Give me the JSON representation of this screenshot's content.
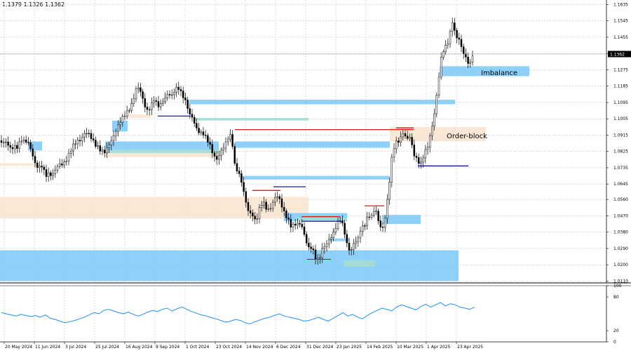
{
  "header": {
    "ohlc_text": "1.1379 1.1326 1.1362"
  },
  "colors": {
    "candle": "#000000",
    "zone_blue": "#87cefa",
    "zone_beige": "#fae6d2",
    "zone_teal": "#a6dccf",
    "level_red": "#e00000",
    "level_navy": "#00008b",
    "oscillator": "#1e90ff",
    "grid": "#c8c8c8"
  },
  "chart_data": {
    "type": "candlestick",
    "price_axis": {
      "ticks": [
        "1.1635",
        "1.1545",
        "1.1455",
        "1.1365",
        "1.1275",
        "1.1185",
        "1.1095",
        "1.1005",
        "1.0915",
        "1.0825",
        "1.0735",
        "1.0645",
        "1.0560",
        "1.0470",
        "1.0380",
        "1.0290",
        "1.0200",
        "1.0110"
      ],
      "ylim": [
        1.01,
        1.166
      ],
      "current_price": "1.1362"
    },
    "time_axis": {
      "labels": [
        "20 May 2024",
        "11 Jun 2024",
        "3 Jul 2024",
        "25 Jul 2024",
        "16 Aug 2024",
        "9 Sep 2024",
        "1 Oct 2024",
        "23 Oct 2024",
        "14 Nov 2024",
        "6 Dec 2024",
        "31 Dec 2024",
        "23 Jan 2025",
        "14 Feb 2025",
        "10 Mar 2025",
        "1 Apr 2025",
        "23 Apr 2025"
      ]
    },
    "price_path": [
      [
        0,
        1.0885
      ],
      [
        5,
        1.087
      ],
      [
        10,
        1.086
      ],
      [
        15,
        1.084
      ],
      [
        20,
        1.0865
      ],
      [
        25,
        1.0855
      ],
      [
        30,
        1.088
      ],
      [
        35,
        1.087
      ],
      [
        40,
        1.088
      ],
      [
        45,
        1.084
      ],
      [
        50,
        1.076
      ],
      [
        55,
        1.072
      ],
      [
        60,
        1.074
      ],
      [
        65,
        1.07
      ],
      [
        70,
        1.0715
      ],
      [
        75,
        1.069
      ],
      [
        80,
        1.072
      ],
      [
        85,
        1.075
      ],
      [
        90,
        1.0765
      ],
      [
        95,
        1.079
      ],
      [
        100,
        1.082
      ],
      [
        105,
        1.085
      ],
      [
        110,
        1.088
      ],
      [
        115,
        1.09
      ],
      [
        120,
        1.093
      ],
      [
        125,
        1.092
      ],
      [
        130,
        1.089
      ],
      [
        135,
        1.087
      ],
      [
        140,
        1.086
      ],
      [
        145,
        1.083
      ],
      [
        150,
        1.081
      ],
      [
        155,
        1.085
      ],
      [
        160,
        1.09
      ],
      [
        165,
        1.095
      ],
      [
        170,
        1.098
      ],
      [
        175,
        1.1
      ],
      [
        180,
        1.103
      ],
      [
        185,
        1.107
      ],
      [
        190,
        1.112
      ],
      [
        195,
        1.118
      ],
      [
        200,
        1.115
      ],
      [
        205,
        1.109
      ],
      [
        210,
        1.106
      ],
      [
        215,
        1.108
      ],
      [
        220,
        1.111
      ],
      [
        225,
        1.106
      ],
      [
        230,
        1.109
      ],
      [
        235,
        1.113
      ],
      [
        240,
        1.115
      ],
      [
        245,
        1.112
      ],
      [
        250,
        1.116
      ],
      [
        255,
        1.118
      ],
      [
        260,
        1.115
      ],
      [
        265,
        1.11
      ],
      [
        270,
        1.102
      ],
      [
        275,
        1.1
      ],
      [
        280,
        1.096
      ],
      [
        285,
        1.094
      ],
      [
        290,
        1.092
      ],
      [
        295,
        1.088
      ],
      [
        300,
        1.085
      ],
      [
        305,
        1.081
      ],
      [
        310,
        1.079
      ],
      [
        315,
        1.082
      ],
      [
        320,
        1.084
      ],
      [
        325,
        1.09
      ],
      [
        330,
        1.093
      ],
      [
        335,
        1.075
      ],
      [
        340,
        1.07
      ],
      [
        345,
        1.064
      ],
      [
        350,
        1.056
      ],
      [
        355,
        1.05
      ],
      [
        360,
        1.048
      ],
      [
        365,
        1.042
      ],
      [
        370,
        1.05
      ],
      [
        375,
        1.056
      ],
      [
        380,
        1.052
      ],
      [
        385,
        1.05
      ],
      [
        390,
        1.054
      ],
      [
        395,
        1.058
      ],
      [
        400,
        1.056
      ],
      [
        405,
        1.05
      ],
      [
        410,
        1.045
      ],
      [
        415,
        1.04
      ],
      [
        420,
        1.042
      ],
      [
        425,
        1.044
      ],
      [
        430,
        1.043
      ],
      [
        435,
        1.034
      ],
      [
        440,
        1.028
      ],
      [
        445,
        1.03
      ],
      [
        450,
        1.025
      ],
      [
        455,
        1.023
      ],
      [
        460,
        1.028
      ],
      [
        465,
        1.03
      ],
      [
        470,
        1.035
      ],
      [
        475,
        1.038
      ],
      [
        480,
        1.042
      ],
      [
        485,
        1.044
      ],
      [
        490,
        1.04
      ],
      [
        495,
        1.032
      ],
      [
        500,
        1.028
      ],
      [
        505,
        1.032
      ],
      [
        510,
        1.032
      ],
      [
        515,
        1.04
      ],
      [
        520,
        1.043
      ],
      [
        525,
        1.048
      ],
      [
        530,
        1.046
      ],
      [
        535,
        1.05
      ],
      [
        540,
        1.044
      ],
      [
        545,
        1.04
      ],
      [
        550,
        1.048
      ],
      [
        555,
        1.063
      ],
      [
        560,
        1.082
      ],
      [
        565,
        1.088
      ],
      [
        570,
        1.09
      ],
      [
        575,
        1.093
      ],
      [
        580,
        1.088
      ],
      [
        585,
        1.09
      ],
      [
        590,
        1.082
      ],
      [
        595,
        1.079
      ],
      [
        600,
        1.075
      ],
      [
        605,
        1.08
      ],
      [
        610,
        1.085
      ],
      [
        615,
        1.095
      ],
      [
        620,
        1.105
      ],
      [
        625,
        1.12
      ],
      [
        630,
        1.135
      ],
      [
        635,
        1.14
      ],
      [
        640,
        1.145
      ],
      [
        645,
        1.155
      ],
      [
        650,
        1.145
      ],
      [
        655,
        1.143
      ],
      [
        660,
        1.138
      ],
      [
        665,
        1.135
      ],
      [
        670,
        1.13
      ],
      [
        675,
        1.1362
      ]
    ],
    "zones": [
      {
        "kind": "blue",
        "x1": 0,
        "x2": 654,
        "p1": 1.028,
        "p2": 1.011
      },
      {
        "kind": "beige",
        "x1": 0,
        "x2": 440,
        "p1": 1.0575,
        "p2": 1.0455
      },
      {
        "kind": "beige",
        "x1": 0,
        "x2": 55,
        "p1": 1.076,
        "p2": 1.0745
      },
      {
        "kind": "blue",
        "x1": 40,
        "x2": 60,
        "p1": 1.088,
        "p2": 1.083
      },
      {
        "kind": "blue",
        "x1": 150,
        "x2": 312,
        "p1": 1.088,
        "p2": 1.083
      },
      {
        "kind": "teal",
        "x1": 150,
        "x2": 312,
        "p1": 1.0835,
        "p2": 1.0815
      },
      {
        "kind": "beige",
        "x1": 150,
        "x2": 312,
        "p1": 1.0815,
        "p2": 1.0795
      },
      {
        "kind": "blue",
        "x1": 160,
        "x2": 182,
        "p1": 1.0995,
        "p2": 1.0935
      },
      {
        "kind": "beige",
        "x1": 182,
        "x2": 215,
        "p1": 1.103,
        "p2": 1.101
      },
      {
        "kind": "blue",
        "x1": 270,
        "x2": 649,
        "p1": 1.111,
        "p2": 1.1085
      },
      {
        "kind": "teal",
        "x1": 278,
        "x2": 440,
        "p1": 1.101,
        "p2": 1.0995
      },
      {
        "kind": "blue",
        "x1": 335,
        "x2": 556,
        "p1": 1.088,
        "p2": 1.0845
      },
      {
        "kind": "blue",
        "x1": 345,
        "x2": 556,
        "p1": 1.069,
        "p2": 1.067
      },
      {
        "kind": "beige",
        "x1": 556,
        "x2": 693,
        "p1": 1.096,
        "p2": 1.088
      },
      {
        "kind": "blue",
        "x1": 405,
        "x2": 495,
        "p1": 1.0485,
        "p2": 1.044
      },
      {
        "kind": "teal",
        "x1": 420,
        "x2": 495,
        "p1": 1.046,
        "p2": 1.044
      },
      {
        "kind": "blue",
        "x1": 545,
        "x2": 600,
        "p1": 1.0475,
        "p2": 1.0425
      },
      {
        "kind": "blue",
        "x1": 470,
        "x2": 498,
        "p1": 1.0345,
        "p2": 1.033
      },
      {
        "kind": "blue",
        "x1": 627,
        "x2": 755,
        "p1": 1.1295,
        "p2": 1.124
      },
      {
        "kind": "teal",
        "x1": 490,
        "x2": 535,
        "p1": 1.0225,
        "p2": 1.019
      }
    ],
    "levels": [
      {
        "kind": "red",
        "x1": 335,
        "x2": 590,
        "p": 1.0945
      },
      {
        "kind": "red",
        "x1": 360,
        "x2": 400,
        "p": 1.061
      },
      {
        "kind": "red",
        "x1": 430,
        "x2": 485,
        "p": 1.0465
      },
      {
        "kind": "red",
        "x1": 520,
        "x2": 548,
        "p": 1.0525
      },
      {
        "kind": "red",
        "x1": 565,
        "x2": 590,
        "p": 1.0955
      },
      {
        "kind": "red",
        "x1": 438,
        "x2": 472,
        "p": 1.023
      },
      {
        "kind": "navy",
        "x1": 225,
        "x2": 272,
        "p": 1.102
      },
      {
        "kind": "navy",
        "x1": 390,
        "x2": 436,
        "p": 1.063
      },
      {
        "kind": "navy",
        "x1": 596,
        "x2": 668,
        "p": 1.0745
      },
      {
        "kind": "navy",
        "x1": 430,
        "x2": 490,
        "p": 1.044
      }
    ],
    "annotations": [
      {
        "label": "Imbalance",
        "x": 686,
        "p": 1.1262
      },
      {
        "label": "Order-block",
        "x": 637,
        "p": 1.0912
      }
    ],
    "oscillator": {
      "axis_ticks": [
        "100",
        "80",
        "20",
        "0"
      ],
      "ylim": [
        0,
        100
      ],
      "values": [
        52,
        50,
        48,
        46,
        49,
        47,
        45,
        47,
        44,
        48,
        42,
        40,
        37,
        34,
        36,
        38,
        41,
        44,
        48,
        52,
        50,
        56,
        58,
        55,
        52,
        50,
        53,
        49,
        46,
        49,
        53,
        56,
        54,
        58,
        60,
        55,
        59,
        62,
        58,
        54,
        51,
        48,
        46,
        43,
        41,
        38,
        35,
        37,
        40,
        38,
        34,
        32,
        36,
        39,
        42,
        44,
        47,
        50,
        46,
        44,
        42,
        40,
        37,
        38,
        41,
        44,
        40,
        37,
        42,
        47,
        52,
        46,
        49,
        44,
        41,
        47,
        52,
        56,
        60,
        58,
        55,
        62,
        66,
        63,
        60,
        57,
        63,
        67,
        62,
        66,
        70,
        64,
        68,
        66,
        62,
        60,
        58,
        62
      ]
    }
  }
}
